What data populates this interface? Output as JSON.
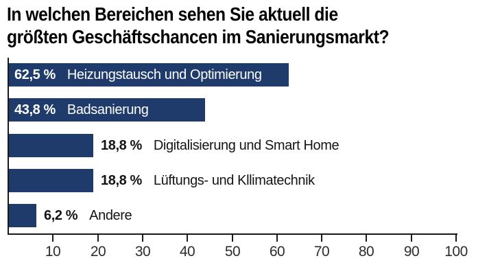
{
  "title": {
    "line1": "In welchen Bereichen sehen Sie aktuell die",
    "line2": "größten Geschäftschancen im Sanierungsmarkt?"
  },
  "colors": {
    "bar": "#1e3b6b",
    "axis": "#1a1a1a",
    "label_inside": "#ffffff",
    "label_outside": "#141414"
  },
  "chart_data": {
    "type": "bar",
    "orientation": "horizontal",
    "title": "In welchen Bereichen sehen Sie aktuell die größten Geschäftschancen im Sanierungsmarkt?",
    "categories": [
      "Heizungstausch und Optimierung",
      "Badsanierung",
      "Digitalisierung und Smart Home",
      "Lüftungs- und Kllimatechnik",
      "Andere"
    ],
    "values": [
      62.5,
      43.8,
      18.8,
      18.8,
      6.2
    ],
    "value_labels": [
      "62,5 %",
      "43,8 %",
      "18,8 %",
      "18,8 %",
      "6,2 %"
    ],
    "label_inside_bar": [
      true,
      true,
      false,
      false,
      false
    ],
    "x_ticks": [
      10,
      20,
      30,
      40,
      50,
      60,
      70,
      80,
      90,
      100
    ],
    "xlim": [
      0,
      100
    ],
    "xlabel": "",
    "ylabel": "",
    "grid": false,
    "legend": false
  }
}
